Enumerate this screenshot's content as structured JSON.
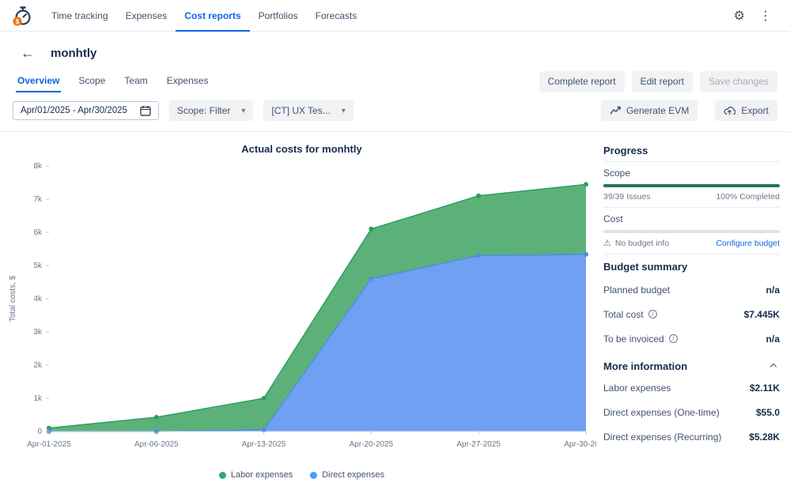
{
  "ui": {
    "gear": "⚙",
    "kebab": "⋮",
    "back": "←",
    "warning": "⚠",
    "info_letter": "i",
    "chevron_down": "▾"
  },
  "nav": {
    "items": [
      {
        "label": "Time tracking"
      },
      {
        "label": "Expenses"
      },
      {
        "label": "Cost reports"
      },
      {
        "label": "Portfolios"
      },
      {
        "label": "Forecasts"
      }
    ],
    "active": "Cost reports"
  },
  "report": {
    "title": "monhtly"
  },
  "report_tabs": [
    {
      "label": "Overview"
    },
    {
      "label": "Scope"
    },
    {
      "label": "Team"
    },
    {
      "label": "Expenses"
    }
  ],
  "actions": {
    "complete": "Complete report",
    "edit": "Edit report",
    "save": "Save changes",
    "generate_evm": "Generate EVM",
    "export": "Export"
  },
  "filters": {
    "date_range": "Apr/01/2025 - Apr/30/2025",
    "scope": "Scope: Filter",
    "project": "[CT] UX Tes..."
  },
  "chart_data": {
    "type": "area",
    "stacked": true,
    "title": "Actual costs for monhtly",
    "ylabel": "Total costs, $",
    "ylim": [
      0,
      8000
    ],
    "yticks": [
      0,
      1000,
      2000,
      3000,
      4000,
      5000,
      6000,
      7000,
      8000
    ],
    "ytick_labels": [
      "0",
      "1k",
      "2k",
      "3k",
      "4k",
      "5k",
      "6k",
      "7k",
      "8k"
    ],
    "categories": [
      "Apr-01-2025",
      "Apr-06-2025",
      "Apr-13-2025",
      "Apr-20-2025",
      "Apr-27-2025",
      "Apr-30-2025"
    ],
    "series": [
      {
        "name": "Direct expenses",
        "color": "#6FA0F2",
        "line_color": "#4D8FE6",
        "values": [
          0,
          0,
          50,
          4600,
          5300,
          5335
        ]
      },
      {
        "name": "Labor expenses",
        "color": "#5CB178",
        "line_color": "#2E9E63",
        "values": [
          100,
          430,
          950,
          1500,
          1800,
          2110
        ]
      }
    ],
    "legend": [
      "Labor expenses",
      "Direct expenses"
    ],
    "legend_colors": {
      "Labor expenses": "#36A573",
      "Direct expenses": "#4C9AFF"
    },
    "legend_position": "bottom",
    "grid": false
  },
  "sidebar": {
    "progress": {
      "heading": "Progress",
      "scope": {
        "label": "Scope",
        "left": "39/39 Issues",
        "right": "100% Completed",
        "percent": 100,
        "bar_color": "#1E7B52"
      },
      "cost": {
        "label": "Cost",
        "left": "No budget info",
        "link": "Configure budget",
        "percent": 0,
        "bar_color": "#DFE1E6"
      }
    },
    "budget": {
      "heading": "Budget summary",
      "rows": [
        {
          "label": "Planned budget",
          "value": "n/a"
        },
        {
          "label": "Total cost",
          "value": "$7.445K"
        },
        {
          "label": "To be invoiced",
          "value": "n/a"
        }
      ]
    },
    "more": {
      "heading": "More information",
      "rows": [
        {
          "label": "Labor expenses",
          "value": "$2.11K"
        },
        {
          "label": "Direct expenses (One-time)",
          "value": "$55.0"
        },
        {
          "label": "Direct expenses (Recurring)",
          "value": "$5.28K"
        }
      ]
    }
  }
}
